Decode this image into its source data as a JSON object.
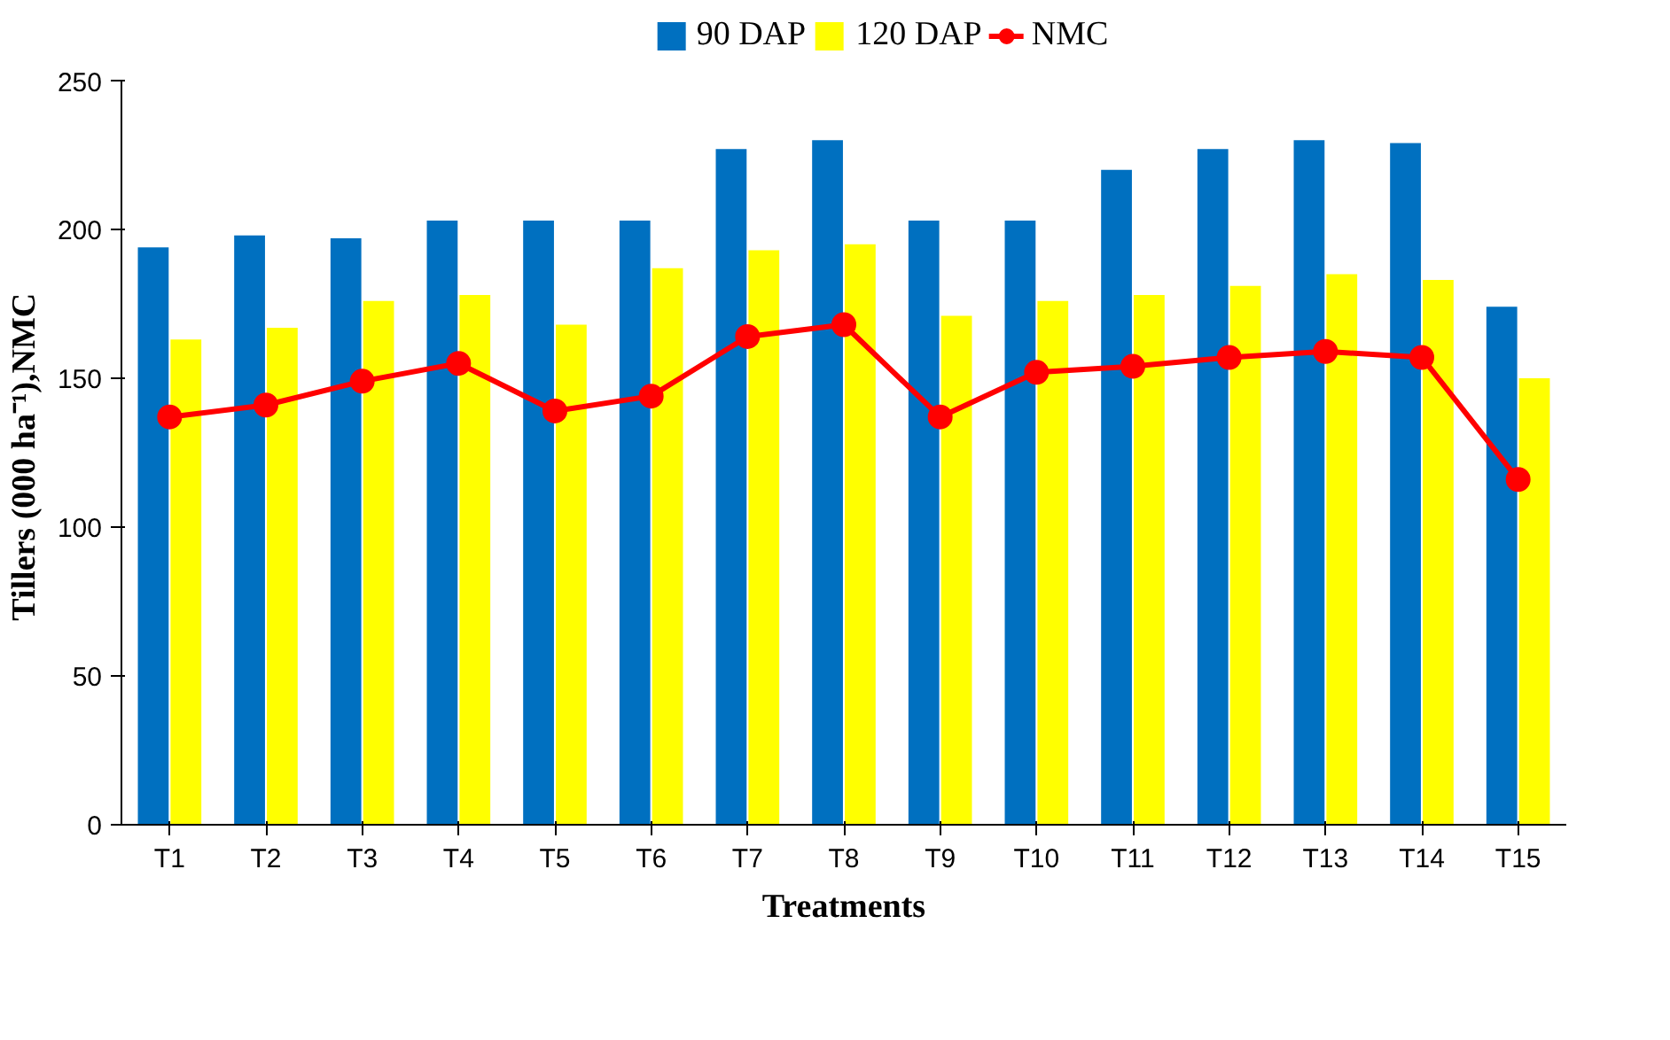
{
  "chart_data": {
    "type": "bar",
    "xlabel": "Treatments",
    "ylabel": "Tillers  (000 ha⁻¹),NMC",
    "categories": [
      "T1",
      "T2",
      "T3",
      "T4",
      "T5",
      "T6",
      "T7",
      "T8",
      "T9",
      "T10",
      "T11",
      "T12",
      "T13",
      "T14",
      "T15"
    ],
    "series": [
      {
        "name": "90 DAP",
        "color": "#0070c0",
        "values": [
          194,
          198,
          197,
          203,
          203,
          203,
          227,
          230,
          203,
          203,
          220,
          227,
          230,
          229,
          174
        ]
      },
      {
        "name": "120 DAP",
        "color": "#ffff00",
        "values": [
          163,
          167,
          176,
          178,
          168,
          187,
          193,
          195,
          171,
          176,
          178,
          181,
          185,
          183,
          150
        ]
      },
      {
        "name": "NMC",
        "type": "line",
        "color": "#ff0000",
        "marker": "circle",
        "values": [
          137,
          141,
          149,
          155,
          139,
          144,
          164,
          168,
          137,
          152,
          154,
          157,
          159,
          157,
          116
        ]
      }
    ],
    "ylim": [
      0,
      250
    ],
    "yticks": [
      0,
      50,
      100,
      150,
      200,
      250
    ],
    "grid": false,
    "legend": "top"
  }
}
